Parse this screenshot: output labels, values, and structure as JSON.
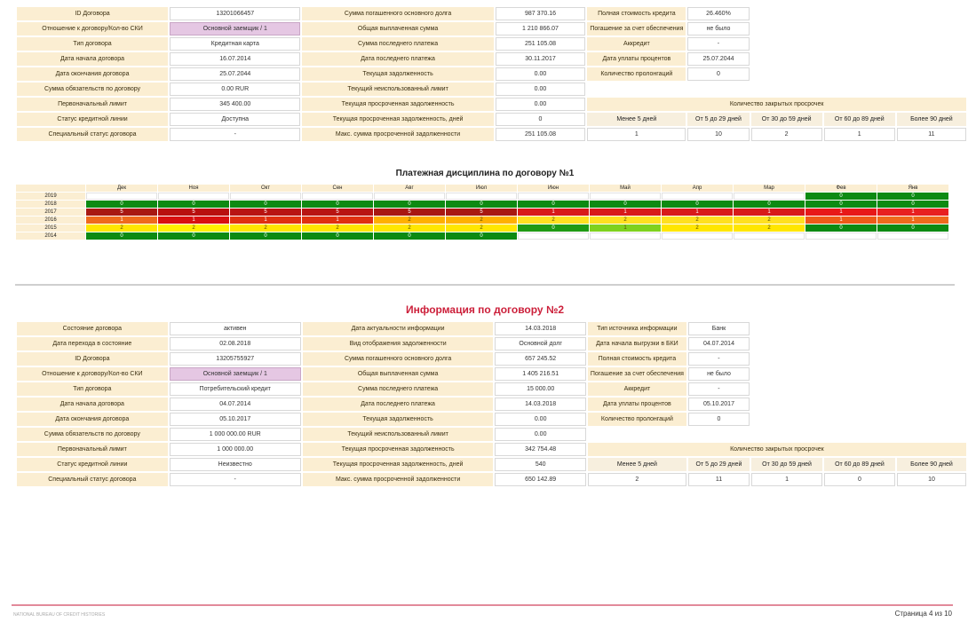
{
  "contract1": {
    "rows": [
      [
        {
          "t": "lab",
          "v": "ID Договора"
        },
        {
          "t": "val",
          "v": "13201066457"
        },
        {
          "t": "lab",
          "v": "Сумма погашенного основного долга"
        },
        {
          "t": "val",
          "v": "987 370.16"
        },
        {
          "t": "lab",
          "v": "Полная стоимость кредита"
        },
        {
          "t": "val",
          "v": "26.460%"
        }
      ],
      [
        {
          "t": "lab",
          "v": "Отношение к договору/Кол-во СКИ"
        },
        {
          "t": "pur",
          "v": "Основной заемщик / 1"
        },
        {
          "t": "lab",
          "v": "Общая выплаченная сумма"
        },
        {
          "t": "val",
          "v": "1 210 866.07"
        },
        {
          "t": "lab",
          "v": "Погашение за счет обеспечения"
        },
        {
          "t": "val",
          "v": "не было"
        }
      ],
      [
        {
          "t": "lab",
          "v": "Тип договора"
        },
        {
          "t": "val",
          "v": "Кредитная карта"
        },
        {
          "t": "lab",
          "v": "Сумма последнего платежа"
        },
        {
          "t": "val",
          "v": "251 105.08"
        },
        {
          "t": "lab",
          "v": "Аккредит"
        },
        {
          "t": "val",
          "v": "-"
        }
      ],
      [
        {
          "t": "lab",
          "v": "Дата начала договора"
        },
        {
          "t": "val",
          "v": "16.07.2014"
        },
        {
          "t": "lab",
          "v": "Дата последнего платежа"
        },
        {
          "t": "val",
          "v": "30.11.2017"
        },
        {
          "t": "lab",
          "v": "Дата уплаты процентов"
        },
        {
          "t": "val",
          "v": "25.07.2044"
        }
      ],
      [
        {
          "t": "lab",
          "v": "Дата окончания договора"
        },
        {
          "t": "val",
          "v": "25.07.2044"
        },
        {
          "t": "lab",
          "v": "Текущая задолженность"
        },
        {
          "t": "val",
          "v": "0.00"
        },
        {
          "t": "lab",
          "v": "Количество пролонгаций"
        },
        {
          "t": "val",
          "v": "0"
        }
      ],
      [
        {
          "t": "lab",
          "v": "Сумма обязательств по договору"
        },
        {
          "t": "val",
          "v": "0.00 RUR"
        },
        {
          "t": "lab",
          "v": "Текущий неиспользованный лимит"
        },
        {
          "t": "val",
          "v": "0.00"
        },
        {
          "t": "blank",
          "v": "",
          "span": 2
        }
      ],
      [
        {
          "t": "lab",
          "v": "Первоначальный лимит"
        },
        {
          "t": "val",
          "v": "345 400.00"
        },
        {
          "t": "lab",
          "v": "Текущая просроченная задолженность"
        },
        {
          "t": "val",
          "v": "0.00"
        },
        {
          "t": "lab",
          "v": "Количество закрытых просрочек",
          "span": 2
        }
      ],
      [
        {
          "t": "lab",
          "v": "Статус кредитной линии"
        },
        {
          "t": "val",
          "v": "Доступна"
        },
        {
          "t": "lab",
          "v": "Текущая просроченная задолженность, дней"
        },
        {
          "t": "val",
          "v": "0"
        },
        {
          "t": "ovd_head"
        }
      ],
      [
        {
          "t": "lab",
          "v": "Специальный статус договора"
        },
        {
          "t": "val",
          "v": "-"
        },
        {
          "t": "lab",
          "v": "Макс. сумма просроченной задолженности"
        },
        {
          "t": "val",
          "v": "251 105.08"
        },
        {
          "t": "ovd_vals",
          "v": [
            "1",
            "10",
            "2",
            "1",
            "11"
          ]
        }
      ]
    ]
  },
  "overdue_headers": [
    "Менее 5 дней",
    "От 5 до 29 дней",
    "От 30 до 59 дней",
    "От 60 до 89 дней",
    "Более 90 дней"
  ],
  "discipline": {
    "title": "Платежная дисциплина по договору №1",
    "months": [
      "Дек",
      "Ноя",
      "Окт",
      "Сен",
      "Авг",
      "Июл",
      "Июн",
      "Май",
      "Апр",
      "Мар",
      "Фев",
      "Янв"
    ],
    "rows": [
      {
        "year": "2019",
        "cells": [
          "",
          "",
          "",
          "",
          "",
          "",
          "",
          "",
          "",
          "",
          "0",
          "0"
        ]
      },
      {
        "year": "2018",
        "cells": [
          "0",
          "0",
          "0",
          "0",
          "0",
          "0",
          "0",
          "0",
          "0",
          "0",
          "0",
          "0"
        ]
      },
      {
        "year": "2017",
        "cells": [
          "5",
          "5",
          "5",
          "5",
          "5",
          "5",
          "1",
          "1",
          "1",
          "1",
          "1",
          "1"
        ]
      },
      {
        "year": "2016",
        "cells": [
          "1",
          "1",
          "1",
          "1",
          "2",
          "2",
          "2",
          "2",
          "2",
          "2",
          "1",
          "1"
        ]
      },
      {
        "year": "2015",
        "cells": [
          "2",
          "2",
          "2",
          "2",
          "2",
          "2",
          "0",
          "1",
          "2",
          "2",
          "0",
          "0"
        ]
      },
      {
        "year": "2014",
        "cells": [
          "0",
          "0",
          "0",
          "0",
          "0",
          "0",
          "",
          "",
          "",
          "",
          "",
          ""
        ]
      }
    ],
    "colors": [
      [
        "",
        "",
        "",
        "",
        "",
        "",
        "",
        "",
        "",
        "",
        "#0d8a12",
        "#0d8a12"
      ],
      [
        "#0d8a12",
        "#0d8a12",
        "#0d8a12",
        "#0d8a12",
        "#0d8a12",
        "#0d8a12",
        "#0d8a12",
        "#0d8a12",
        "#0d8a12",
        "#0d8a12",
        "#0d8a12",
        "#0d8a12"
      ],
      [
        "#a81812",
        "#b8100f",
        "#b81412",
        "#b81412",
        "#a81812",
        "#a81812",
        "#d81a1a",
        "#d81a1a",
        "#d81a1a",
        "#d81a1a",
        "#e81818",
        "#e82020"
      ],
      [
        "#ef6a1c",
        "#d81010",
        "#e03010",
        "#e03010",
        "#ffb000",
        "#ffb000",
        "#ffe020",
        "#ffe020",
        "#ffe020",
        "#ffe020",
        "#ef5a18",
        "#ef6a1c"
      ],
      [
        "#ffe600",
        "#fff000",
        "#ffe600",
        "#ffe600",
        "#ffe600",
        "#ffe600",
        "#1f9a14",
        "#7fd11e",
        "#ffe600",
        "#ffe600",
        "#0d8a12",
        "#0d8a12"
      ],
      [
        "#0d8a12",
        "#0d8a12",
        "#0d8a12",
        "#0d8a12",
        "#0d8a12",
        "#0d8a12",
        "",
        "",
        "",
        "",
        "",
        ""
      ]
    ]
  },
  "contract2": {
    "title": "Информация по договору №2",
    "rows": [
      [
        {
          "t": "lab",
          "v": "Состояние договора"
        },
        {
          "t": "val",
          "v": "активен"
        },
        {
          "t": "lab",
          "v": "Дата актуальности информации"
        },
        {
          "t": "val",
          "v": "14.03.2018"
        },
        {
          "t": "lab",
          "v": "Тип источника информации"
        },
        {
          "t": "val",
          "v": "Банк"
        }
      ],
      [
        {
          "t": "lab",
          "v": "Дата перехода в состояние"
        },
        {
          "t": "val",
          "v": "02.08.2018"
        },
        {
          "t": "lab",
          "v": "Вид отображения задолженности"
        },
        {
          "t": "val",
          "v": "Основной долг"
        },
        {
          "t": "lab",
          "v": "Дата начала выгрузки в БКИ"
        },
        {
          "t": "val",
          "v": "04.07.2014"
        }
      ],
      [
        {
          "t": "lab",
          "v": "ID Договора"
        },
        {
          "t": "val",
          "v": "13205755927"
        },
        {
          "t": "lab",
          "v": "Сумма погашенного основного долга"
        },
        {
          "t": "val",
          "v": "657 245.52"
        },
        {
          "t": "lab",
          "v": "Полная стоимость кредита"
        },
        {
          "t": "val",
          "v": "-"
        }
      ],
      [
        {
          "t": "lab",
          "v": "Отношение к договору/Кол-во СКИ"
        },
        {
          "t": "pur",
          "v": "Основной заемщик / 1"
        },
        {
          "t": "lab",
          "v": "Общая выплаченная сумма"
        },
        {
          "t": "val",
          "v": "1 405 216.51"
        },
        {
          "t": "lab",
          "v": "Погашение за счет обеспечения"
        },
        {
          "t": "val",
          "v": "не было"
        }
      ],
      [
        {
          "t": "lab",
          "v": "Тип договора"
        },
        {
          "t": "val",
          "v": "Потребительский кредит"
        },
        {
          "t": "lab",
          "v": "Сумма последнего платежа"
        },
        {
          "t": "val",
          "v": "15 000.00"
        },
        {
          "t": "lab",
          "v": "Аккредит"
        },
        {
          "t": "val",
          "v": "-"
        }
      ],
      [
        {
          "t": "lab",
          "v": "Дата начала договора"
        },
        {
          "t": "val",
          "v": "04.07.2014"
        },
        {
          "t": "lab",
          "v": "Дата последнего платежа"
        },
        {
          "t": "val",
          "v": "14.03.2018"
        },
        {
          "t": "lab",
          "v": "Дата уплаты процентов"
        },
        {
          "t": "val",
          "v": "05.10.2017"
        }
      ],
      [
        {
          "t": "lab",
          "v": "Дата окончания договора"
        },
        {
          "t": "val",
          "v": "05.10.2017"
        },
        {
          "t": "lab",
          "v": "Текущая задолженность"
        },
        {
          "t": "val",
          "v": "0.00"
        },
        {
          "t": "lab",
          "v": "Количество пролонгаций"
        },
        {
          "t": "val",
          "v": "0"
        }
      ],
      [
        {
          "t": "lab",
          "v": "Сумма обязательств по договору"
        },
        {
          "t": "val",
          "v": "1 000 000.00 RUR"
        },
        {
          "t": "lab",
          "v": "Текущий неиспользованный лимит"
        },
        {
          "t": "val",
          "v": "0.00"
        },
        {
          "t": "blank",
          "v": "",
          "span": 2
        }
      ],
      [
        {
          "t": "lab",
          "v": "Первоначальный лимит"
        },
        {
          "t": "val",
          "v": "1 000 000.00"
        },
        {
          "t": "lab",
          "v": "Текущая просроченная задолженность"
        },
        {
          "t": "val",
          "v": "342 754.48"
        },
        {
          "t": "lab",
          "v": "Количество закрытых просрочек",
          "span": 2
        }
      ],
      [
        {
          "t": "lab",
          "v": "Статус кредитной линии"
        },
        {
          "t": "val",
          "v": "Неизвестно"
        },
        {
          "t": "lab",
          "v": "Текущая просроченная задолженность, дней"
        },
        {
          "t": "val",
          "v": "540"
        },
        {
          "t": "ovd_head"
        }
      ],
      [
        {
          "t": "lab",
          "v": "Специальный статус договора"
        },
        {
          "t": "val",
          "v": "-"
        },
        {
          "t": "lab",
          "v": "Макс. сумма просроченной задолженности"
        },
        {
          "t": "val",
          "v": "650 142.89"
        },
        {
          "t": "ovd_vals",
          "v": [
            "2",
            "11",
            "1",
            "0",
            "10"
          ]
        }
      ]
    ]
  },
  "footer": {
    "left": "NATIONAL BUREAU OF CREDIT HISTORIES",
    "right": "Страница 4 из 10"
  }
}
